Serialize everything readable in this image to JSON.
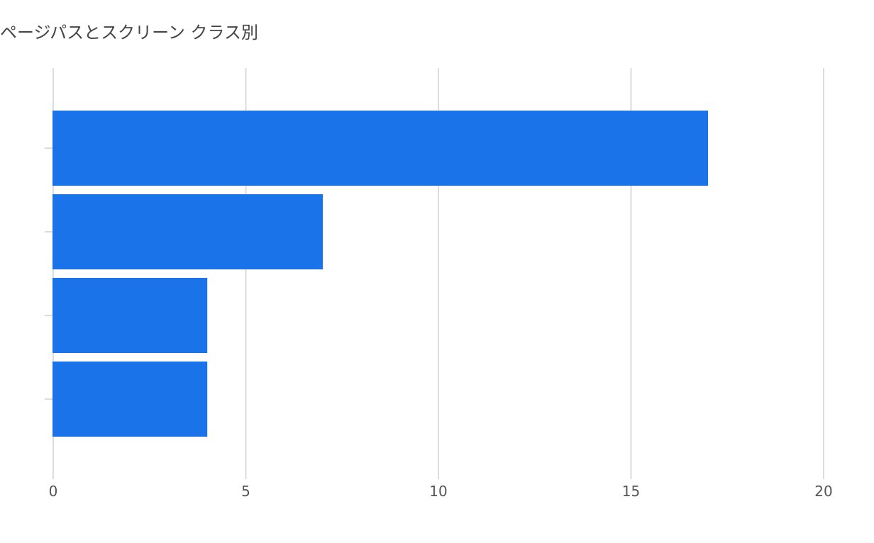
{
  "chart_data": {
    "type": "bar",
    "orientation": "horizontal",
    "title": "ページパスとスクリーン クラス別",
    "categories": [
      "",
      "",
      "",
      ""
    ],
    "values": [
      17,
      7,
      4,
      4
    ],
    "xlim": [
      0,
      20
    ],
    "xticks": [
      "0",
      "5",
      "10",
      "15",
      "20"
    ],
    "xlabel": "",
    "ylabel": "",
    "grid": true,
    "legend": "none",
    "bar_color": "#1a73e8",
    "grid_color": "#dadce0",
    "tick_text_color": "#555555"
  }
}
